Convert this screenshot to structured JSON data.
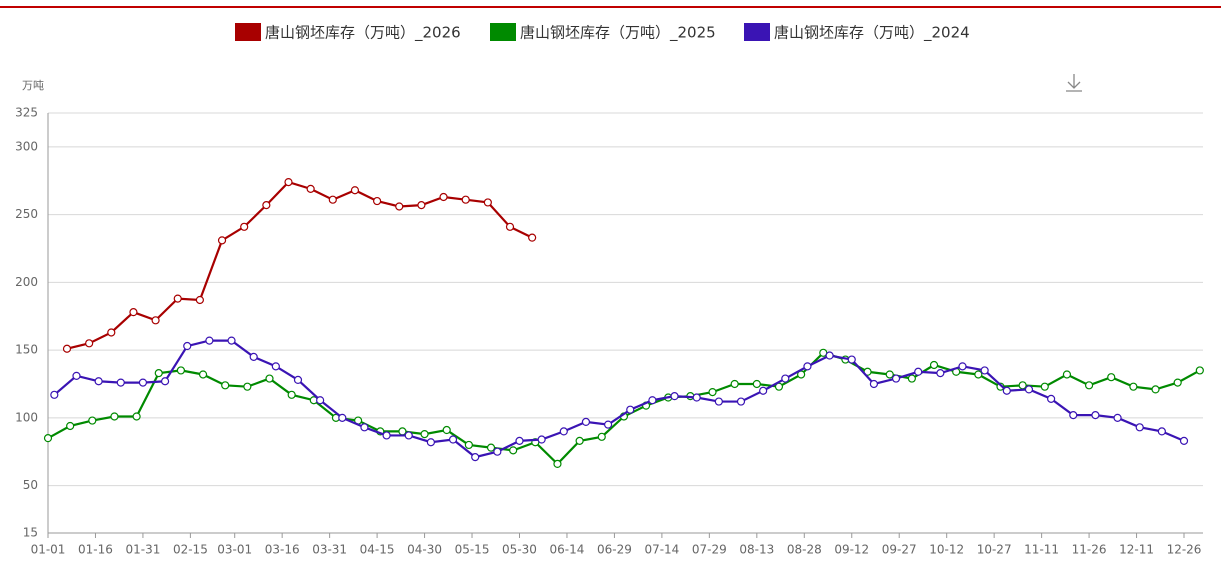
{
  "chart_data": {
    "type": "line",
    "y_unit": "万吨",
    "xlim": [
      0,
      365
    ],
    "xticks": [
      {
        "value": 0,
        "label": "01-01"
      },
      {
        "value": 15,
        "label": "01-16"
      },
      {
        "value": 30,
        "label": "01-31"
      },
      {
        "value": 45,
        "label": "02-15"
      },
      {
        "value": 59,
        "label": "03-01"
      },
      {
        "value": 74,
        "label": "03-16"
      },
      {
        "value": 89,
        "label": "03-31"
      },
      {
        "value": 104,
        "label": "04-15"
      },
      {
        "value": 119,
        "label": "04-30"
      },
      {
        "value": 134,
        "label": "05-15"
      },
      {
        "value": 149,
        "label": "05-30"
      },
      {
        "value": 164,
        "label": "06-14"
      },
      {
        "value": 179,
        "label": "06-29"
      },
      {
        "value": 194,
        "label": "07-14"
      },
      {
        "value": 209,
        "label": "07-29"
      },
      {
        "value": 224,
        "label": "08-13"
      },
      {
        "value": 239,
        "label": "08-28"
      },
      {
        "value": 254,
        "label": "09-12"
      },
      {
        "value": 269,
        "label": "09-27"
      },
      {
        "value": 284,
        "label": "10-12"
      },
      {
        "value": 299,
        "label": "10-27"
      },
      {
        "value": 314,
        "label": "11-11"
      },
      {
        "value": 329,
        "label": "11-26"
      },
      {
        "value": 344,
        "label": "12-11"
      },
      {
        "value": 359,
        "label": "12-26"
      }
    ],
    "ylim": [
      15,
      325
    ],
    "yticks": [
      15,
      50,
      100,
      150,
      200,
      250,
      300,
      325
    ],
    "grid": true,
    "series": [
      {
        "name": "唐山钢坯库存（万吨）_2026",
        "color": "#a80000",
        "x": [
          6,
          13,
          20,
          27,
          34,
          41,
          48,
          55,
          62,
          69,
          76,
          83,
          90,
          97,
          104,
          111,
          118,
          125,
          132,
          139,
          146,
          153
        ],
        "values": [
          151,
          155,
          163,
          178,
          172,
          188,
          187,
          231,
          241,
          257,
          274,
          269,
          261,
          268,
          260,
          256,
          257,
          263,
          261,
          259,
          241,
          233
        ]
      },
      {
        "name": "唐山钢坯库存（万吨）_2025",
        "color": "#008a00",
        "x": [
          0,
          7,
          14,
          21,
          28,
          35,
          42,
          49,
          56,
          63,
          70,
          77,
          84,
          91,
          98,
          105,
          112,
          119,
          126,
          133,
          140,
          147,
          154,
          161,
          168,
          175,
          182,
          189,
          196,
          203,
          210,
          217,
          224,
          231,
          238,
          245,
          252,
          259,
          266,
          273,
          280,
          287,
          294,
          301,
          308,
          315,
          322,
          329,
          336,
          343,
          350,
          357,
          364
        ],
        "values": [
          85,
          94,
          98,
          101,
          101,
          133,
          135,
          132,
          124,
          123,
          129,
          117,
          113,
          100,
          98,
          90,
          90,
          88,
          91,
          80,
          78,
          76,
          82,
          66,
          83,
          86,
          101,
          109,
          115,
          116,
          119,
          125,
          125,
          123,
          132,
          148,
          143,
          134,
          132,
          129,
          139,
          134,
          132,
          123,
          124,
          123,
          132,
          124,
          130,
          123,
          121,
          126,
          135
        ]
      },
      {
        "name": "唐山钢坯库存（万吨）_2024",
        "color": "#3a14b4",
        "x": [
          2,
          9,
          16,
          23,
          30,
          37,
          44,
          51,
          58,
          65,
          72,
          79,
          86,
          93,
          100,
          107,
          114,
          121,
          128,
          135,
          142,
          149,
          156,
          163,
          170,
          177,
          184,
          191,
          198,
          205,
          212,
          219,
          226,
          233,
          240,
          247,
          254,
          261,
          268,
          275,
          282,
          289,
          296,
          303,
          310,
          317,
          324,
          331,
          338,
          345,
          352,
          359
        ],
        "values": [
          117,
          131,
          127,
          126,
          126,
          127,
          153,
          157,
          157,
          145,
          138,
          128,
          113,
          100,
          93,
          87,
          87,
          82,
          84,
          71,
          75,
          83,
          84,
          90,
          97,
          95,
          106,
          113,
          116,
          115,
          112,
          112,
          120,
          129,
          138,
          146,
          143,
          125,
          129,
          134,
          133,
          138,
          135,
          120,
          121,
          114,
          102,
          102,
          100,
          93,
          90,
          83
        ]
      }
    ]
  }
}
